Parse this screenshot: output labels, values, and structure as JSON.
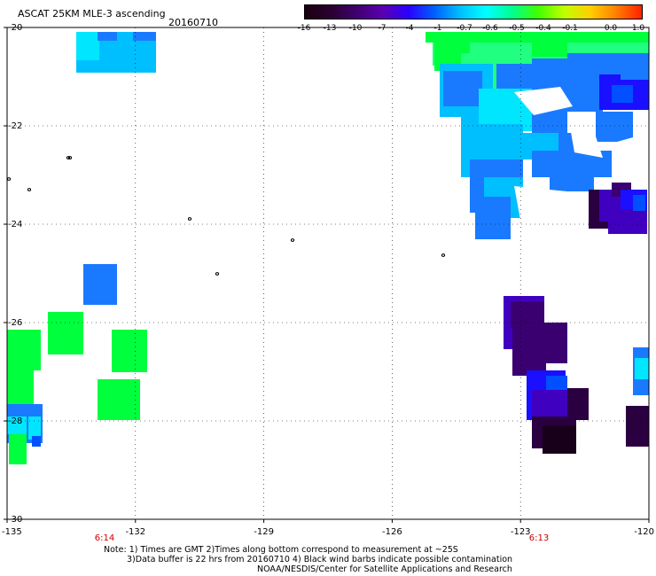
{
  "header": {
    "title": "ASCAT 25KM MLE-3 ascending",
    "date": "20160710"
  },
  "colorbar": {
    "labels": [
      "-16",
      "-13",
      "-10",
      "-7",
      "-4",
      "-1",
      "-0.7",
      "-0.6",
      "-0.5",
      "-0.4",
      "-0.1",
      "0.0",
      "1.0"
    ],
    "colors": [
      "#1a0010",
      "#2a0030",
      "#400070",
      "#5a00b0",
      "#2a00ff",
      "#0060ff",
      "#00c0ff",
      "#00ffff",
      "#00ff90",
      "#40ff00",
      "#c0ff00",
      "#ffd000",
      "#ff8000",
      "#ff2000"
    ]
  },
  "map": {
    "lat_labels": [
      "-20",
      "-22",
      "-24",
      "-26",
      "-28",
      "-30"
    ],
    "lon_labels": [
      "-135",
      "-132",
      "-129",
      "-126",
      "-123",
      "-120"
    ],
    "time_labels": [
      "6:14",
      "6:13"
    ],
    "lat_range": [
      -30,
      -20
    ],
    "lon_range": [
      -135,
      -120
    ],
    "palette": {
      "cyan": "#00bfff",
      "lightcyan": "#00e6ff",
      "green": "#00ff3c",
      "lightgreen": "#20ff80",
      "blue": "#1a7aff",
      "midblue": "#0050ff",
      "deepblue": "#1a10ff",
      "violet": "#4000c0",
      "purple": "#3a0070",
      "darkpurple": "#2a0040",
      "black": "#18001a"
    }
  },
  "notes": {
    "line1": "Note: 1) Times are GMT 2)Times along bottom correspond to measurement at ~25S",
    "line2": "3)Data buffer is 22 hrs from 20160710 4) Black wind barbs indicate possible contamination",
    "line3": "NOAA/NESDIS/Center for Satellite Applications and Research"
  }
}
